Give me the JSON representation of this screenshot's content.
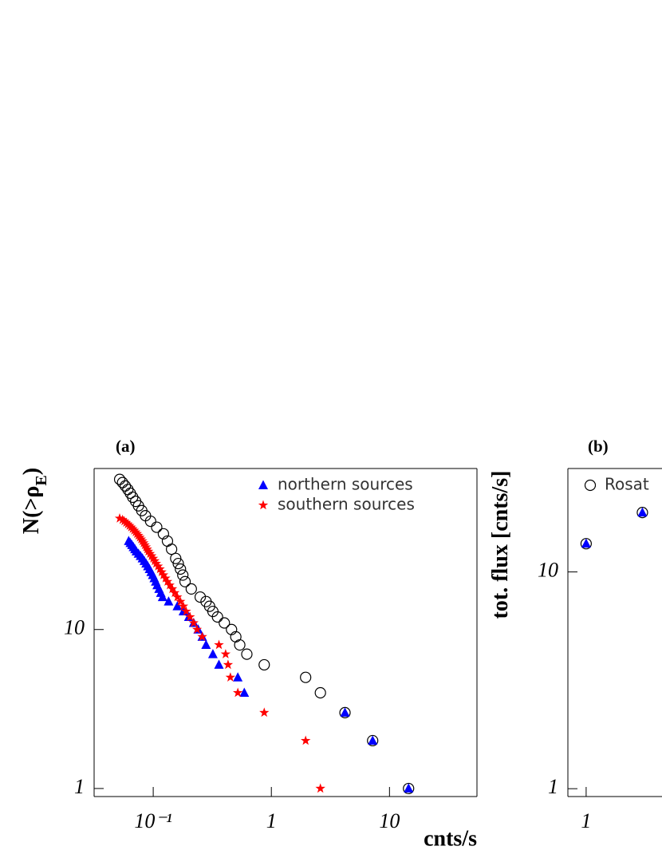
{
  "chart_data": [
    {
      "type": "scatter",
      "title": "(a)",
      "x_label": "cnts/s",
      "y_label": [
        "N(>ρ",
        "E",
        ")"
      ],
      "log_x": true,
      "log_y": true,
      "legend": "upper right",
      "xlim": [
        0.0316,
        55
      ],
      "ylim": [
        0.89,
        103
      ],
      "xticks": [
        {
          "value": 0.1,
          "label": "10⁻¹"
        },
        1,
        10
      ],
      "yticks": [
        1,
        10
      ],
      "series": [
        {
          "marker": "circle",
          "color": "#000000",
          "x": [
            0.052,
            0.055,
            0.058,
            0.061,
            0.064,
            0.067,
            0.071,
            0.075,
            0.08,
            0.086,
            0.095,
            0.107,
            0.122,
            0.132,
            0.143,
            0.155,
            0.163,
            0.17,
            0.178,
            0.186,
            0.21,
            0.25,
            0.28,
            0.3,
            0.32,
            0.35,
            0.4,
            0.46,
            0.5,
            0.54,
            0.62,
            0.87,
            1.95,
            2.6,
            4.2,
            7.2,
            14.5
          ],
          "values": [
            88,
            84,
            80,
            76,
            72,
            68,
            64,
            60,
            56,
            52,
            48,
            44,
            40,
            36,
            32,
            28,
            26,
            24,
            22,
            20,
            18,
            16,
            15,
            14,
            13,
            12,
            11,
            10,
            9,
            8,
            7,
            6,
            5,
            4,
            3,
            2,
            1
          ]
        },
        {
          "name": "northern sources",
          "marker": "triangle",
          "color": "#0000ff",
          "x": [
            0.062,
            0.064,
            0.066,
            0.068,
            0.07,
            0.072,
            0.075,
            0.078,
            0.081,
            0.084,
            0.087,
            0.09,
            0.093,
            0.096,
            0.099,
            0.102,
            0.105,
            0.108,
            0.112,
            0.116,
            0.12,
            0.135,
            0.16,
            0.18,
            0.2,
            0.22,
            0.24,
            0.26,
            0.28,
            0.32,
            0.36,
            0.52,
            0.59,
            4.2,
            7.2,
            14.5
          ],
          "values": [
            36,
            35,
            34,
            33,
            32,
            31,
            30,
            29,
            28,
            27,
            26,
            25,
            24,
            23,
            22,
            21,
            20,
            19,
            18,
            17,
            16,
            15,
            14,
            13,
            12,
            11,
            10,
            9,
            8,
            7,
            6,
            5,
            4,
            3,
            2,
            1
          ]
        },
        {
          "name": "southern sources",
          "marker": "star",
          "color": "#ff0000",
          "x": [
            0.052,
            0.055,
            0.057,
            0.059,
            0.061,
            0.063,
            0.065,
            0.067,
            0.069,
            0.071,
            0.073,
            0.075,
            0.077,
            0.079,
            0.081,
            0.083,
            0.085,
            0.087,
            0.089,
            0.091,
            0.094,
            0.097,
            0.1,
            0.103,
            0.106,
            0.11,
            0.114,
            0.118,
            0.122,
            0.127,
            0.132,
            0.138,
            0.145,
            0.152,
            0.16,
            0.17,
            0.18,
            0.19,
            0.205,
            0.22,
            0.235,
            0.26,
            0.36,
            0.41,
            0.43,
            0.45,
            0.52,
            0.87,
            1.95,
            2.6
          ],
          "values": [
            50,
            49,
            48,
            47,
            46,
            45,
            44,
            43,
            42,
            41,
            40,
            39,
            38,
            37,
            36,
            35,
            34,
            33,
            32,
            31,
            30,
            29,
            28,
            27,
            26,
            25,
            24,
            23,
            22,
            21,
            20,
            19,
            18,
            17,
            16,
            15,
            14,
            13,
            12,
            11,
            10,
            9,
            8,
            7,
            6,
            5,
            4,
            3,
            2,
            1
          ]
        }
      ]
    },
    {
      "type": "scatter",
      "title": "(b)",
      "y_label": [
        "tot. flux [cnts/s]"
      ],
      "log_x": true,
      "log_y": true,
      "legend": "upper left",
      "xlim": [
        0.7,
        4.4
      ],
      "ylim": [
        0.92,
        30
      ],
      "xticks": [
        1
      ],
      "yticks": [
        1,
        10
      ],
      "series": [
        {
          "name": "Rosat",
          "marker": "circle",
          "color": "#000000",
          "x": [
            1,
            3
          ],
          "values": [
            13.5,
            18.8
          ]
        },
        {
          "marker": "triangle",
          "color": "#0000ff",
          "x": [
            1,
            3
          ],
          "values": [
            13.5,
            18.8
          ]
        }
      ]
    }
  ]
}
